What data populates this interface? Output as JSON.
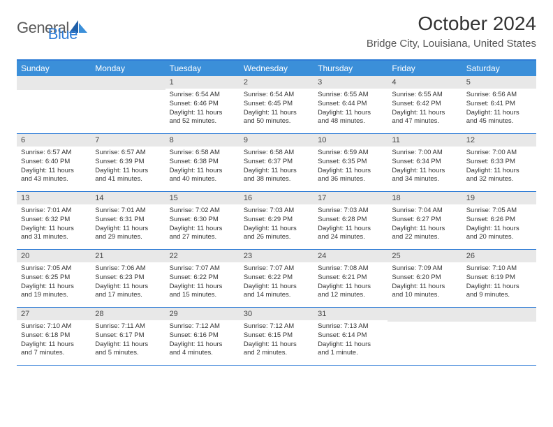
{
  "logo": {
    "general": "General",
    "blue": "Blue"
  },
  "title": "October 2024",
  "location": "Bridge City, Louisiana, United States",
  "colors": {
    "accent": "#3b8fd9",
    "border": "#2e7cd6",
    "daynum_bg": "#e8e8e8",
    "text": "#333333"
  },
  "dayNames": [
    "Sunday",
    "Monday",
    "Tuesday",
    "Wednesday",
    "Thursday",
    "Friday",
    "Saturday"
  ],
  "weeks": [
    [
      null,
      null,
      {
        "n": "1",
        "sr": "6:54 AM",
        "ss": "6:46 PM",
        "dl": "11 hours and 52 minutes."
      },
      {
        "n": "2",
        "sr": "6:54 AM",
        "ss": "6:45 PM",
        "dl": "11 hours and 50 minutes."
      },
      {
        "n": "3",
        "sr": "6:55 AM",
        "ss": "6:44 PM",
        "dl": "11 hours and 48 minutes."
      },
      {
        "n": "4",
        "sr": "6:55 AM",
        "ss": "6:42 PM",
        "dl": "11 hours and 47 minutes."
      },
      {
        "n": "5",
        "sr": "6:56 AM",
        "ss": "6:41 PM",
        "dl": "11 hours and 45 minutes."
      }
    ],
    [
      {
        "n": "6",
        "sr": "6:57 AM",
        "ss": "6:40 PM",
        "dl": "11 hours and 43 minutes."
      },
      {
        "n": "7",
        "sr": "6:57 AM",
        "ss": "6:39 PM",
        "dl": "11 hours and 41 minutes."
      },
      {
        "n": "8",
        "sr": "6:58 AM",
        "ss": "6:38 PM",
        "dl": "11 hours and 40 minutes."
      },
      {
        "n": "9",
        "sr": "6:58 AM",
        "ss": "6:37 PM",
        "dl": "11 hours and 38 minutes."
      },
      {
        "n": "10",
        "sr": "6:59 AM",
        "ss": "6:35 PM",
        "dl": "11 hours and 36 minutes."
      },
      {
        "n": "11",
        "sr": "7:00 AM",
        "ss": "6:34 PM",
        "dl": "11 hours and 34 minutes."
      },
      {
        "n": "12",
        "sr": "7:00 AM",
        "ss": "6:33 PM",
        "dl": "11 hours and 32 minutes."
      }
    ],
    [
      {
        "n": "13",
        "sr": "7:01 AM",
        "ss": "6:32 PM",
        "dl": "11 hours and 31 minutes."
      },
      {
        "n": "14",
        "sr": "7:01 AM",
        "ss": "6:31 PM",
        "dl": "11 hours and 29 minutes."
      },
      {
        "n": "15",
        "sr": "7:02 AM",
        "ss": "6:30 PM",
        "dl": "11 hours and 27 minutes."
      },
      {
        "n": "16",
        "sr": "7:03 AM",
        "ss": "6:29 PM",
        "dl": "11 hours and 26 minutes."
      },
      {
        "n": "17",
        "sr": "7:03 AM",
        "ss": "6:28 PM",
        "dl": "11 hours and 24 minutes."
      },
      {
        "n": "18",
        "sr": "7:04 AM",
        "ss": "6:27 PM",
        "dl": "11 hours and 22 minutes."
      },
      {
        "n": "19",
        "sr": "7:05 AM",
        "ss": "6:26 PM",
        "dl": "11 hours and 20 minutes."
      }
    ],
    [
      {
        "n": "20",
        "sr": "7:05 AM",
        "ss": "6:25 PM",
        "dl": "11 hours and 19 minutes."
      },
      {
        "n": "21",
        "sr": "7:06 AM",
        "ss": "6:23 PM",
        "dl": "11 hours and 17 minutes."
      },
      {
        "n": "22",
        "sr": "7:07 AM",
        "ss": "6:22 PM",
        "dl": "11 hours and 15 minutes."
      },
      {
        "n": "23",
        "sr": "7:07 AM",
        "ss": "6:22 PM",
        "dl": "11 hours and 14 minutes."
      },
      {
        "n": "24",
        "sr": "7:08 AM",
        "ss": "6:21 PM",
        "dl": "11 hours and 12 minutes."
      },
      {
        "n": "25",
        "sr": "7:09 AM",
        "ss": "6:20 PM",
        "dl": "11 hours and 10 minutes."
      },
      {
        "n": "26",
        "sr": "7:10 AM",
        "ss": "6:19 PM",
        "dl": "11 hours and 9 minutes."
      }
    ],
    [
      {
        "n": "27",
        "sr": "7:10 AM",
        "ss": "6:18 PM",
        "dl": "11 hours and 7 minutes."
      },
      {
        "n": "28",
        "sr": "7:11 AM",
        "ss": "6:17 PM",
        "dl": "11 hours and 5 minutes."
      },
      {
        "n": "29",
        "sr": "7:12 AM",
        "ss": "6:16 PM",
        "dl": "11 hours and 4 minutes."
      },
      {
        "n": "30",
        "sr": "7:12 AM",
        "ss": "6:15 PM",
        "dl": "11 hours and 2 minutes."
      },
      {
        "n": "31",
        "sr": "7:13 AM",
        "ss": "6:14 PM",
        "dl": "11 hours and 1 minute."
      },
      null,
      null
    ]
  ],
  "labels": {
    "sunrise": "Sunrise:",
    "sunset": "Sunset:",
    "daylight": "Daylight:"
  }
}
